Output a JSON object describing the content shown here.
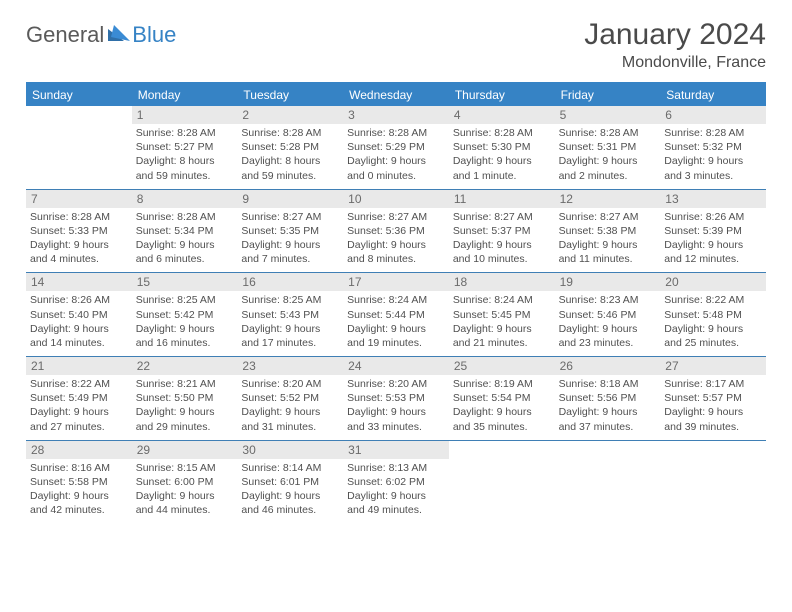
{
  "logo": {
    "part1": "General",
    "part2": "Blue"
  },
  "title": "January 2024",
  "location": "Mondonville, France",
  "colors": {
    "header_bg": "#3683c5",
    "header_text": "#ffffff",
    "daynum_bg": "#e9e9e9",
    "rule": "#3f7fb5",
    "body_text": "#505050",
    "title_text": "#4a4a4a"
  },
  "weekdays": [
    "Sunday",
    "Monday",
    "Tuesday",
    "Wednesday",
    "Thursday",
    "Friday",
    "Saturday"
  ],
  "weeks": [
    [
      {
        "n": "",
        "sr": "",
        "ss": "",
        "dl": ""
      },
      {
        "n": "1",
        "sr": "Sunrise: 8:28 AM",
        "ss": "Sunset: 5:27 PM",
        "dl": "Daylight: 8 hours and 59 minutes."
      },
      {
        "n": "2",
        "sr": "Sunrise: 8:28 AM",
        "ss": "Sunset: 5:28 PM",
        "dl": "Daylight: 8 hours and 59 minutes."
      },
      {
        "n": "3",
        "sr": "Sunrise: 8:28 AM",
        "ss": "Sunset: 5:29 PM",
        "dl": "Daylight: 9 hours and 0 minutes."
      },
      {
        "n": "4",
        "sr": "Sunrise: 8:28 AM",
        "ss": "Sunset: 5:30 PM",
        "dl": "Daylight: 9 hours and 1 minute."
      },
      {
        "n": "5",
        "sr": "Sunrise: 8:28 AM",
        "ss": "Sunset: 5:31 PM",
        "dl": "Daylight: 9 hours and 2 minutes."
      },
      {
        "n": "6",
        "sr": "Sunrise: 8:28 AM",
        "ss": "Sunset: 5:32 PM",
        "dl": "Daylight: 9 hours and 3 minutes."
      }
    ],
    [
      {
        "n": "7",
        "sr": "Sunrise: 8:28 AM",
        "ss": "Sunset: 5:33 PM",
        "dl": "Daylight: 9 hours and 4 minutes."
      },
      {
        "n": "8",
        "sr": "Sunrise: 8:28 AM",
        "ss": "Sunset: 5:34 PM",
        "dl": "Daylight: 9 hours and 6 minutes."
      },
      {
        "n": "9",
        "sr": "Sunrise: 8:27 AM",
        "ss": "Sunset: 5:35 PM",
        "dl": "Daylight: 9 hours and 7 minutes."
      },
      {
        "n": "10",
        "sr": "Sunrise: 8:27 AM",
        "ss": "Sunset: 5:36 PM",
        "dl": "Daylight: 9 hours and 8 minutes."
      },
      {
        "n": "11",
        "sr": "Sunrise: 8:27 AM",
        "ss": "Sunset: 5:37 PM",
        "dl": "Daylight: 9 hours and 10 minutes."
      },
      {
        "n": "12",
        "sr": "Sunrise: 8:27 AM",
        "ss": "Sunset: 5:38 PM",
        "dl": "Daylight: 9 hours and 11 minutes."
      },
      {
        "n": "13",
        "sr": "Sunrise: 8:26 AM",
        "ss": "Sunset: 5:39 PM",
        "dl": "Daylight: 9 hours and 12 minutes."
      }
    ],
    [
      {
        "n": "14",
        "sr": "Sunrise: 8:26 AM",
        "ss": "Sunset: 5:40 PM",
        "dl": "Daylight: 9 hours and 14 minutes."
      },
      {
        "n": "15",
        "sr": "Sunrise: 8:25 AM",
        "ss": "Sunset: 5:42 PM",
        "dl": "Daylight: 9 hours and 16 minutes."
      },
      {
        "n": "16",
        "sr": "Sunrise: 8:25 AM",
        "ss": "Sunset: 5:43 PM",
        "dl": "Daylight: 9 hours and 17 minutes."
      },
      {
        "n": "17",
        "sr": "Sunrise: 8:24 AM",
        "ss": "Sunset: 5:44 PM",
        "dl": "Daylight: 9 hours and 19 minutes."
      },
      {
        "n": "18",
        "sr": "Sunrise: 8:24 AM",
        "ss": "Sunset: 5:45 PM",
        "dl": "Daylight: 9 hours and 21 minutes."
      },
      {
        "n": "19",
        "sr": "Sunrise: 8:23 AM",
        "ss": "Sunset: 5:46 PM",
        "dl": "Daylight: 9 hours and 23 minutes."
      },
      {
        "n": "20",
        "sr": "Sunrise: 8:22 AM",
        "ss": "Sunset: 5:48 PM",
        "dl": "Daylight: 9 hours and 25 minutes."
      }
    ],
    [
      {
        "n": "21",
        "sr": "Sunrise: 8:22 AM",
        "ss": "Sunset: 5:49 PM",
        "dl": "Daylight: 9 hours and 27 minutes."
      },
      {
        "n": "22",
        "sr": "Sunrise: 8:21 AM",
        "ss": "Sunset: 5:50 PM",
        "dl": "Daylight: 9 hours and 29 minutes."
      },
      {
        "n": "23",
        "sr": "Sunrise: 8:20 AM",
        "ss": "Sunset: 5:52 PM",
        "dl": "Daylight: 9 hours and 31 minutes."
      },
      {
        "n": "24",
        "sr": "Sunrise: 8:20 AM",
        "ss": "Sunset: 5:53 PM",
        "dl": "Daylight: 9 hours and 33 minutes."
      },
      {
        "n": "25",
        "sr": "Sunrise: 8:19 AM",
        "ss": "Sunset: 5:54 PM",
        "dl": "Daylight: 9 hours and 35 minutes."
      },
      {
        "n": "26",
        "sr": "Sunrise: 8:18 AM",
        "ss": "Sunset: 5:56 PM",
        "dl": "Daylight: 9 hours and 37 minutes."
      },
      {
        "n": "27",
        "sr": "Sunrise: 8:17 AM",
        "ss": "Sunset: 5:57 PM",
        "dl": "Daylight: 9 hours and 39 minutes."
      }
    ],
    [
      {
        "n": "28",
        "sr": "Sunrise: 8:16 AM",
        "ss": "Sunset: 5:58 PM",
        "dl": "Daylight: 9 hours and 42 minutes."
      },
      {
        "n": "29",
        "sr": "Sunrise: 8:15 AM",
        "ss": "Sunset: 6:00 PM",
        "dl": "Daylight: 9 hours and 44 minutes."
      },
      {
        "n": "30",
        "sr": "Sunrise: 8:14 AM",
        "ss": "Sunset: 6:01 PM",
        "dl": "Daylight: 9 hours and 46 minutes."
      },
      {
        "n": "31",
        "sr": "Sunrise: 8:13 AM",
        "ss": "Sunset: 6:02 PM",
        "dl": "Daylight: 9 hours and 49 minutes."
      },
      {
        "n": "",
        "sr": "",
        "ss": "",
        "dl": ""
      },
      {
        "n": "",
        "sr": "",
        "ss": "",
        "dl": ""
      },
      {
        "n": "",
        "sr": "",
        "ss": "",
        "dl": ""
      }
    ]
  ]
}
